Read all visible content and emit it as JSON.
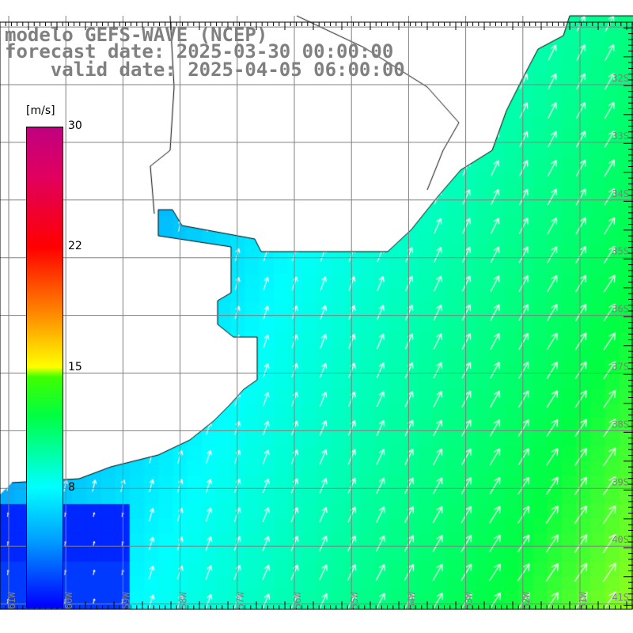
{
  "title": {
    "line1": "modelo GEFS-WAVE (NCEP)",
    "line2": "forecast date: 2025-03-30 00:00:00",
    "line3": "    valid date: 2025-04-05 06:00:00"
  },
  "colorbar": {
    "unit": "[m/s]",
    "labels": [
      "30",
      "22",
      "15",
      "8"
    ],
    "range": [
      0,
      30
    ]
  },
  "axes": {
    "lon_labels": [
      "61W",
      "60W",
      "59W",
      "58W",
      "57W",
      "56W",
      "55W",
      "54W",
      "53W",
      "52W",
      "51W"
    ],
    "lat_labels": [
      "32S",
      "33S",
      "34S",
      "35S",
      "36S",
      "37S",
      "38S",
      "39S",
      "40S",
      "41S"
    ]
  },
  "colors": {
    "land": "#ffffff",
    "grid": "#808080",
    "label": "#808080"
  }
}
